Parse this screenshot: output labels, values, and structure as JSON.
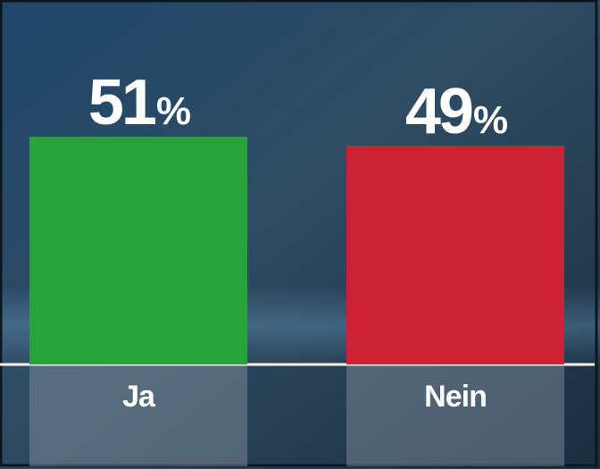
{
  "chart_data": {
    "type": "bar",
    "categories": [
      "Ja",
      "Nein"
    ],
    "values": [
      51,
      49
    ],
    "value_labels": [
      "51%",
      "49%"
    ],
    "colors": [
      "#28a23a",
      "#cc2034"
    ]
  }
}
